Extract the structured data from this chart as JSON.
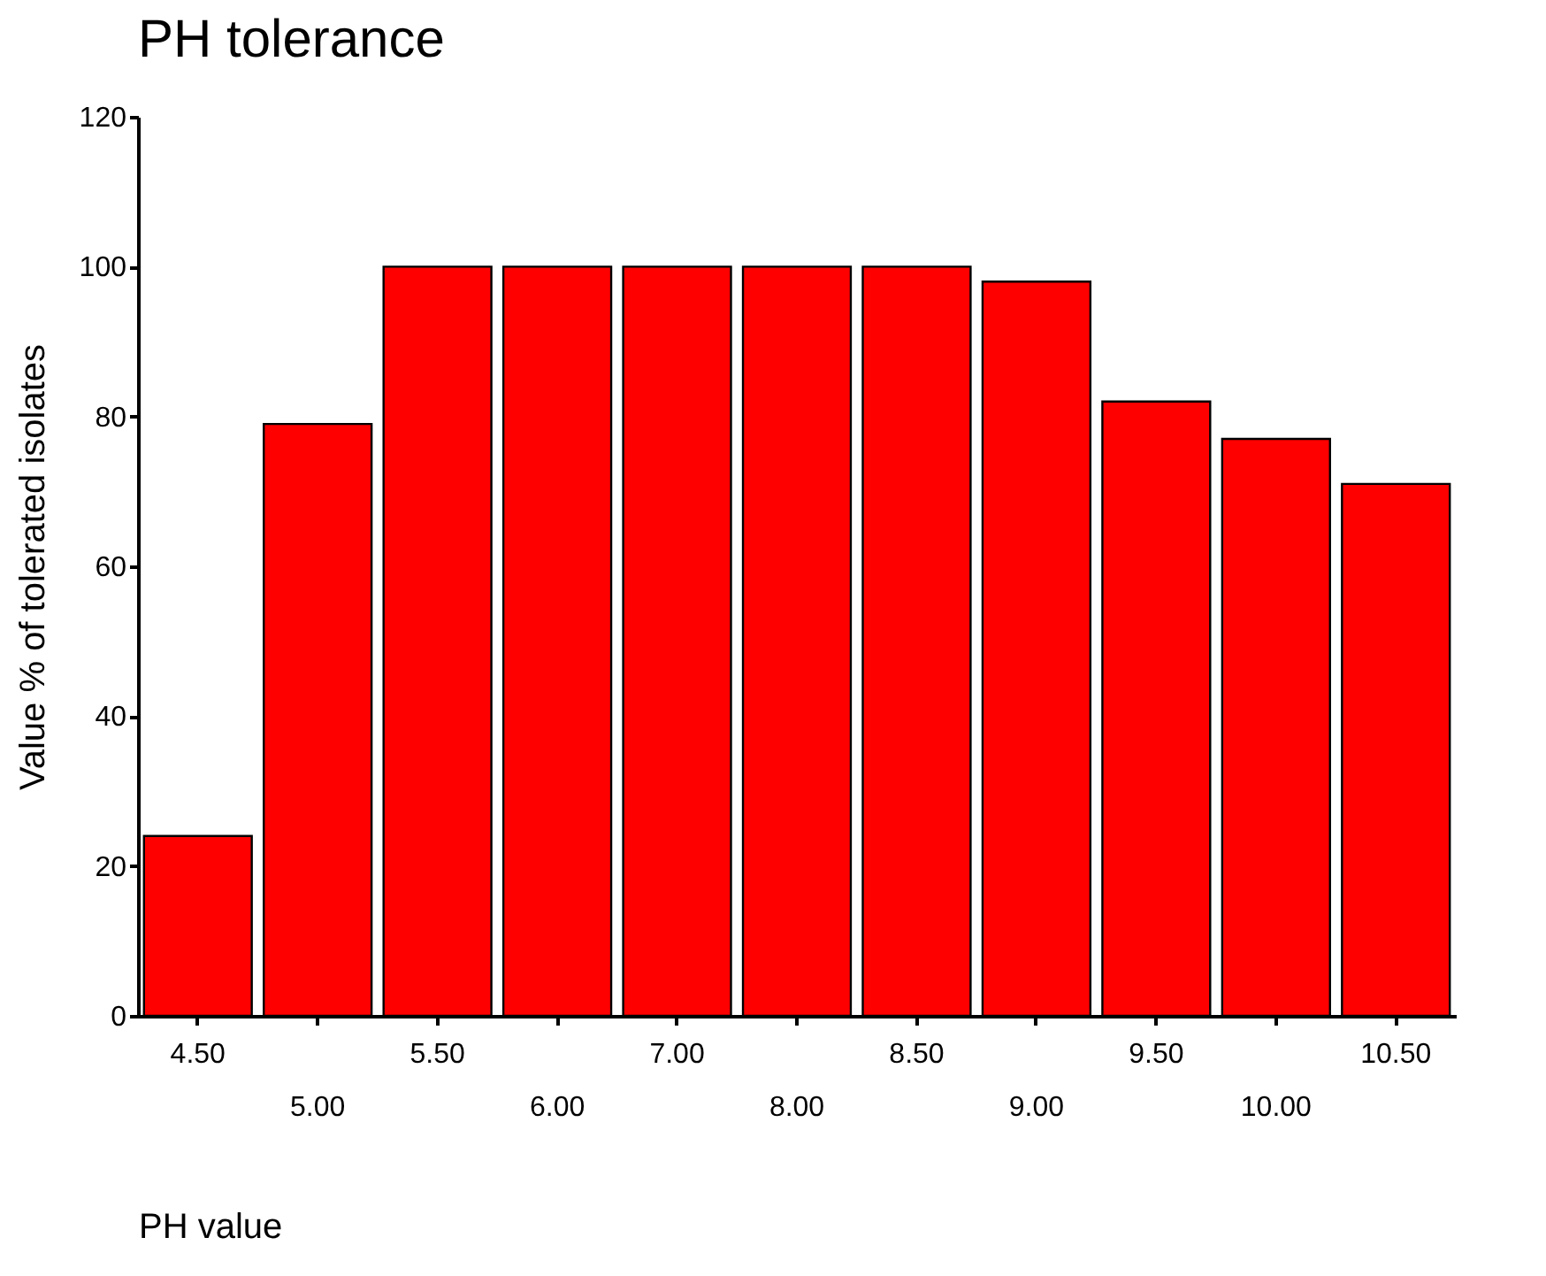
{
  "chart_data": {
    "type": "bar",
    "title": "PH  tolerance",
    "xlabel": "PH value",
    "ylabel": "Value % of tolerated isolates",
    "categories": [
      "4.50",
      "5.00",
      "5.50",
      "6.00",
      "7.00",
      "8.00",
      "8.50",
      "9.00",
      "9.50",
      "10.00",
      "10.50"
    ],
    "values": [
      24,
      79,
      100,
      100,
      100,
      100,
      100,
      98,
      82,
      77,
      71
    ],
    "color": "#ff0000",
    "ylim": [
      0,
      120
    ],
    "yticks": [
      0,
      20,
      40,
      60,
      80,
      100,
      120
    ],
    "grid": false
  }
}
